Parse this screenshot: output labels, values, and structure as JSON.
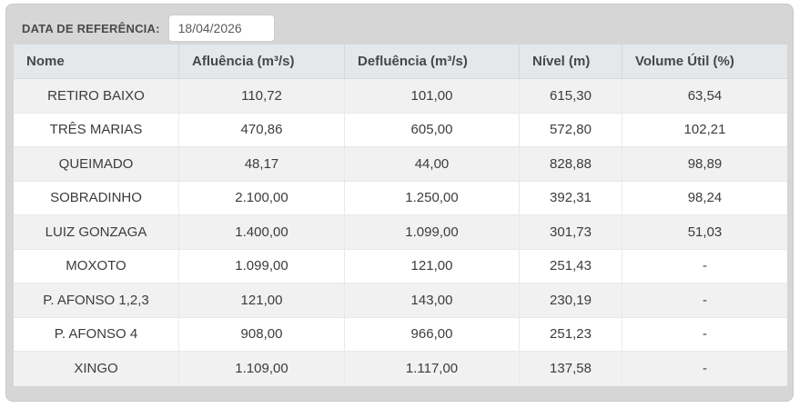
{
  "toolbar": {
    "date_label": "DATA DE REFERÊNCIA:",
    "date_value": "18/04/2026"
  },
  "table": {
    "columns": [
      "Nome",
      "Afluência (m³/s)",
      "Defluência (m³/s)",
      "Nível (m)",
      "Volume Útil (%)"
    ],
    "column_keys": [
      "nome",
      "afluencia",
      "defluencia",
      "nivel",
      "volume-util"
    ],
    "rows": [
      [
        "RETIRO BAIXO",
        "110,72",
        "101,00",
        "615,30",
        "63,54"
      ],
      [
        "TRÊS MARIAS",
        "470,86",
        "605,00",
        "572,80",
        "102,21"
      ],
      [
        "QUEIMADO",
        "48,17",
        "44,00",
        "828,88",
        "98,89"
      ],
      [
        "SOBRADINHO",
        "2.100,00",
        "1.250,00",
        "392,31",
        "98,24"
      ],
      [
        "LUIZ GONZAGA",
        "1.400,00",
        "1.099,00",
        "301,73",
        "51,03"
      ],
      [
        "MOXOTO",
        "1.099,00",
        "121,00",
        "251,43",
        "-"
      ],
      [
        "P. AFONSO 1,2,3",
        "121,00",
        "143,00",
        "230,19",
        "-"
      ],
      [
        "P. AFONSO 4",
        "908,00",
        "966,00",
        "251,23",
        "-"
      ],
      [
        "XINGO",
        "1.109,00",
        "1.117,00",
        "137,58",
        "-"
      ]
    ]
  },
  "colors": {
    "card_background": "#d6d6d6",
    "header_background": "#e5e8ea",
    "stripe_background": "#f1f1f1",
    "text": "#3c3c3c"
  }
}
